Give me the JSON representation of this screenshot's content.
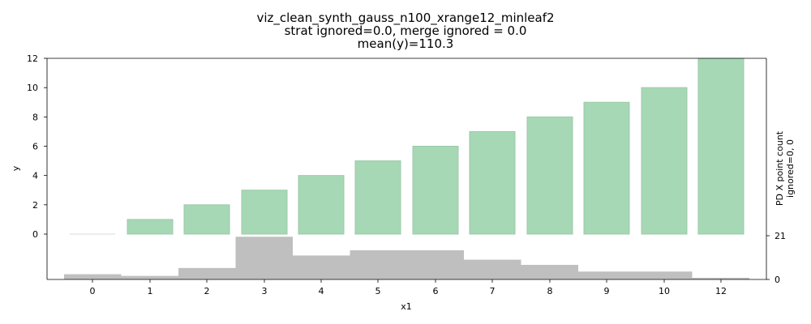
{
  "chart_data": {
    "type": "bar",
    "title": [
      "viz_clean_synth_gauss_n100_xrange12_minleaf2",
      "strat ignored=0.0, merge ignored = 0.0",
      "mean(y)=110.3"
    ],
    "xlabel": "x1",
    "ylabel": "y",
    "ylabel_right": [
      "PD X point count",
      "ignored=0, 0"
    ],
    "categories": [
      "0",
      "1",
      "2",
      "3",
      "4",
      "5",
      "6",
      "7",
      "8",
      "9",
      "10",
      "12"
    ],
    "values": [
      0,
      1,
      2,
      3,
      4,
      5,
      6,
      7,
      8,
      9,
      10,
      12
    ],
    "ylim": [
      0,
      12
    ],
    "yticks": [
      "0",
      "2",
      "4",
      "6",
      "8",
      "10",
      "12"
    ],
    "right_ticks": [
      "0",
      "21"
    ],
    "right_ylim": [
      0,
      21
    ],
    "histogram": [
      {
        "from": "0",
        "to": "1",
        "count": 2.5
      },
      {
        "from": "1",
        "to": "2",
        "count": 1.7
      },
      {
        "from": "2",
        "to": "3",
        "count": 5.5
      },
      {
        "from": "3",
        "to": "4",
        "count": 20.5
      },
      {
        "from": "4",
        "to": "5",
        "count": 11.5
      },
      {
        "from": "5",
        "to": "7",
        "count": 14.0
      },
      {
        "from": "7",
        "to": "8",
        "count": 9.5
      },
      {
        "from": "8",
        "to": "9",
        "count": 7.0
      },
      {
        "from": "9",
        "to": "11",
        "count": 3.8
      },
      {
        "from": "11",
        "to": "12",
        "count": 0.8
      }
    ],
    "bar_color": "#a6d8b5",
    "bar_edge": "#9ccaa9",
    "hist_color": "#bfbfbf",
    "grid": false
  }
}
